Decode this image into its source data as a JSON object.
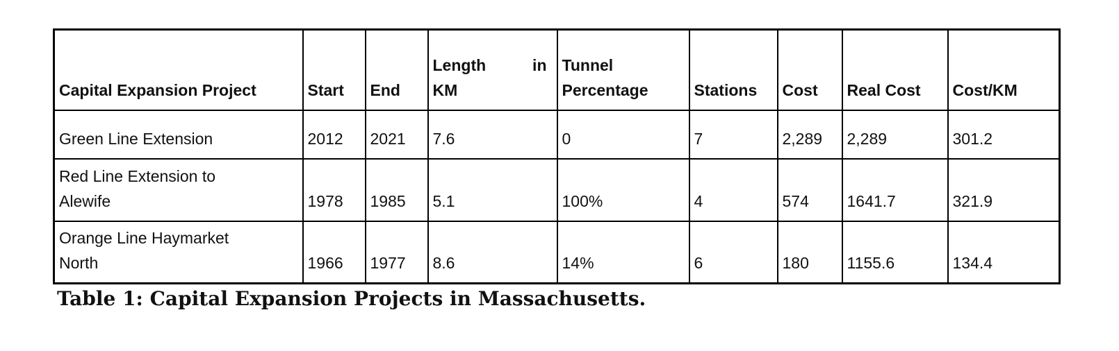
{
  "table": {
    "header": [
      "Capital Expansion Project",
      "Start",
      "End",
      "Length in KM",
      "Tunnel Percentage",
      "Stations",
      "Cost",
      "Real Cost",
      "Cost/KM"
    ],
    "rows": [
      [
        "Green Line Extension",
        "2012",
        "2021",
        "7.6",
        "0",
        "7",
        "2,289",
        "2,289",
        "301.2"
      ],
      [
        "Red Line Extension to Alewife",
        "1978",
        "1985",
        "5.1",
        "100%",
        "4",
        "574",
        "1641.7",
        "321.9"
      ],
      [
        "Orange Line Haymarket North",
        "1966",
        "1977",
        "8.6",
        "14%",
        "6",
        "180",
        "1155.6",
        "134.4"
      ]
    ]
  },
  "caption": "Table 1: Capital Expansion Projects in Massachusetts."
}
